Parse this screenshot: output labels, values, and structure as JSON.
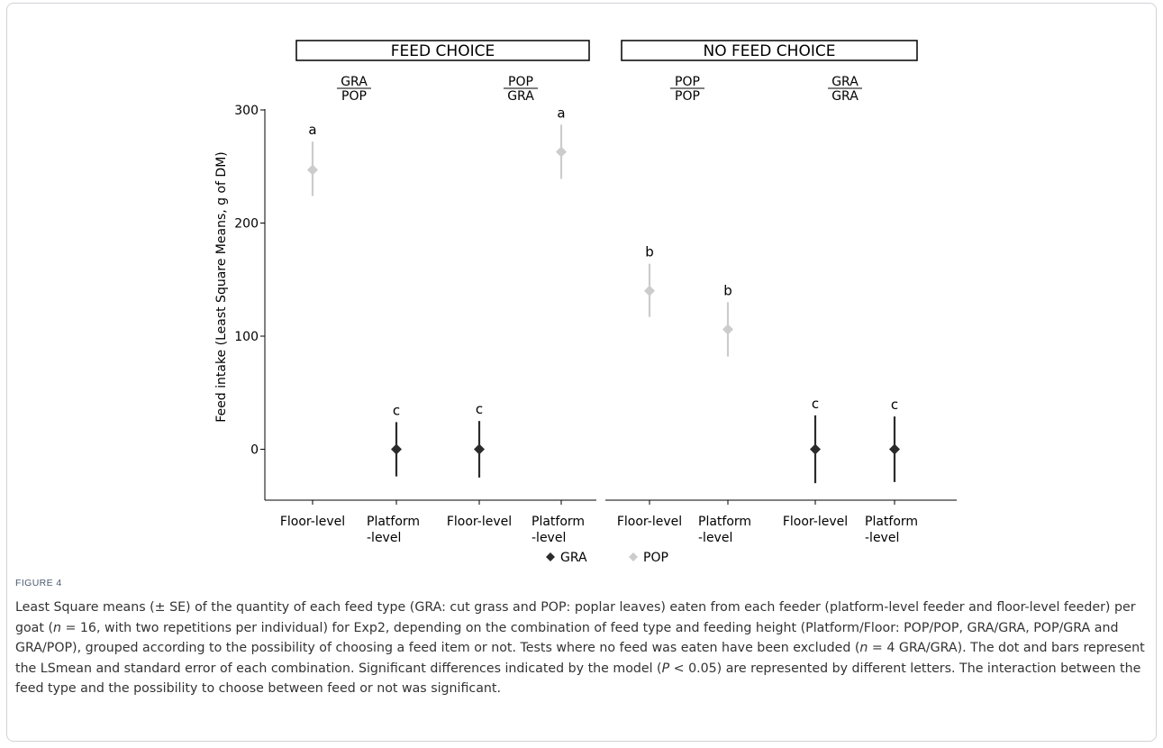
{
  "figure_label": "FIGURE 4",
  "caption_parts": [
    {
      "t": "Least Square means (± SE) of the quantity of each feed type (GRA: cut grass and POP: poplar leaves) eaten from each feeder (platform-level feeder and floor-level feeder) per goat ("
    },
    {
      "t": "n",
      "i": true
    },
    {
      "t": " = 16, with two repetitions per individual) for Exp2, depending on the combination of feed type and feeding height (Platform/Floor: POP/POP, GRA/GRA, POP/GRA and GRA/POP), grouped according to the possibility of choosing a feed item or not. Tests where no feed was eaten have been excluded ("
    },
    {
      "t": "n",
      "i": true
    },
    {
      "t": " = 4 GRA/GRA). The dot and bars represent the LSmean and standard error of each combination. Significant differences indicated by the model ("
    },
    {
      "t": "P",
      "i": true
    },
    {
      "t": " < 0.05) are represented by different letters. The interaction between the feed type and the possibility to choose between feed or not was significant."
    }
  ],
  "chart_data": {
    "type": "scatter",
    "ylabel": "Feed intake (Least Square Means, g of DM)",
    "ylim": [
      -45,
      300
    ],
    "yticks": [
      0,
      100,
      200,
      300
    ],
    "panels": [
      {
        "label": "FEED CHOICE",
        "combos": [
          {
            "top": "GRA",
            "bottom": "POP"
          },
          {
            "top": "POP",
            "bottom": "GRA"
          }
        ]
      },
      {
        "label": "NO FEED CHOICE",
        "combos": [
          {
            "top": "POP",
            "bottom": "POP"
          },
          {
            "top": "GRA",
            "bottom": "GRA"
          }
        ]
      }
    ],
    "x_tick_labels": [
      [
        "Floor-level"
      ],
      [
        "Platform",
        "-level"
      ],
      [
        "Floor-level"
      ],
      [
        "Platform",
        "-level"
      ],
      [
        "Floor-level"
      ],
      [
        "Platform",
        "-level"
      ],
      [
        "Floor-level"
      ],
      [
        "Platform",
        "-level"
      ]
    ],
    "series": [
      {
        "name": "GRA",
        "color": "#2b2b2b",
        "marker": "diamond",
        "points": [
          {
            "pos": 1,
            "y": 0,
            "lo": -24,
            "hi": 24,
            "letter": "c"
          },
          {
            "pos": 2,
            "y": 0,
            "lo": -25,
            "hi": 25,
            "letter": "c"
          },
          {
            "pos": 6,
            "y": 0,
            "lo": -30,
            "hi": 30,
            "letter": "c"
          },
          {
            "pos": 7,
            "y": 0,
            "lo": -29,
            "hi": 29,
            "letter": "c"
          }
        ]
      },
      {
        "name": "POP",
        "color": "#cccccc",
        "marker": "diamond",
        "points": [
          {
            "pos": 0,
            "y": 247,
            "lo": 224,
            "hi": 272,
            "letter": "a"
          },
          {
            "pos": 3,
            "y": 263,
            "lo": 239,
            "hi": 287,
            "letter": "a"
          },
          {
            "pos": 4,
            "y": 140,
            "lo": 117,
            "hi": 164,
            "letter": "b"
          },
          {
            "pos": 5,
            "y": 106,
            "lo": 82,
            "hi": 130,
            "letter": "b"
          }
        ]
      }
    ],
    "legend": {
      "position": "bottom-center",
      "entries": [
        "GRA",
        "POP"
      ]
    },
    "grid": false
  }
}
